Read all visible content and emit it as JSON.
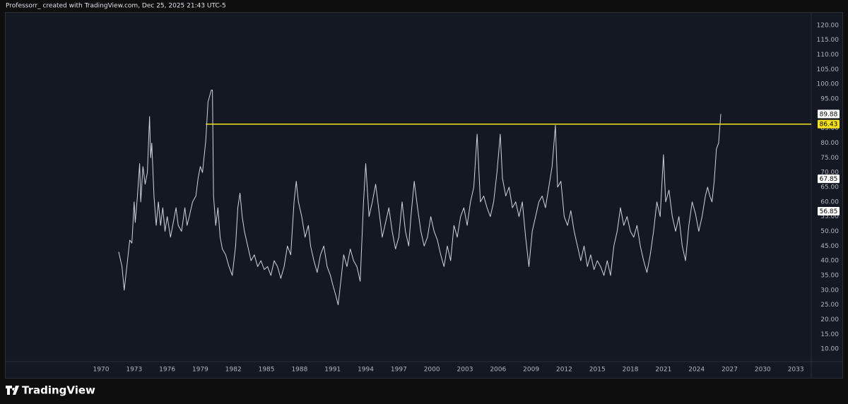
{
  "chart_data": {
    "type": "line",
    "title": "Professorr_ created with TradingView.com, Dec 25, 2025 21:43 UTC-5",
    "brand": "TradingView",
    "color": "#d1d4dc",
    "x": [
      1971.6,
      1971.9,
      1972.1,
      1972.4,
      1972.6,
      1972.8,
      1973.0,
      1973.1,
      1973.3,
      1973.5,
      1973.6,
      1973.8,
      1974.0,
      1974.2,
      1974.4,
      1974.5,
      1974.6,
      1974.8,
      1975.0,
      1975.2,
      1975.4,
      1975.6,
      1975.8,
      1976.0,
      1976.3,
      1976.5,
      1976.8,
      1977.0,
      1977.3,
      1977.6,
      1977.8,
      1978.0,
      1978.3,
      1978.6,
      1978.8,
      1979.0,
      1979.2,
      1979.5,
      1979.7,
      1980.0,
      1980.1,
      1980.2,
      1980.4,
      1980.6,
      1980.8,
      1981.0,
      1981.3,
      1981.6,
      1981.9,
      1982.2,
      1982.4,
      1982.6,
      1982.8,
      1983.0,
      1983.3,
      1983.6,
      1983.9,
      1984.2,
      1984.5,
      1984.8,
      1985.1,
      1985.4,
      1985.7,
      1986.0,
      1986.3,
      1986.6,
      1986.9,
      1987.2,
      1987.5,
      1987.7,
      1987.9,
      1988.2,
      1988.5,
      1988.8,
      1989.0,
      1989.3,
      1989.6,
      1989.9,
      1990.2,
      1990.5,
      1990.8,
      1991.0,
      1991.3,
      1991.5,
      1991.8,
      1992.0,
      1992.3,
      1992.6,
      1992.9,
      1993.2,
      1993.5,
      1993.8,
      1994.0,
      1994.3,
      1994.6,
      1994.9,
      1995.2,
      1995.5,
      1995.8,
      1996.1,
      1996.4,
      1996.7,
      1997.0,
      1997.3,
      1997.6,
      1997.9,
      1998.1,
      1998.4,
      1998.7,
      1999.0,
      1999.3,
      1999.6,
      1999.9,
      2000.2,
      2000.5,
      2000.8,
      2001.1,
      2001.4,
      2001.7,
      2002.0,
      2002.3,
      2002.6,
      2002.9,
      2003.2,
      2003.5,
      2003.8,
      2004.1,
      2004.4,
      2004.7,
      2005.0,
      2005.3,
      2005.6,
      2005.9,
      2006.2,
      2006.4,
      2006.7,
      2007.0,
      2007.3,
      2007.6,
      2007.9,
      2008.2,
      2008.5,
      2008.8,
      2009.1,
      2009.4,
      2009.7,
      2010.0,
      2010.3,
      2010.6,
      2010.9,
      2011.2,
      2011.4,
      2011.7,
      2012.0,
      2012.3,
      2012.6,
      2012.9,
      2013.2,
      2013.5,
      2013.8,
      2014.1,
      2014.4,
      2014.7,
      2015.0,
      2015.3,
      2015.6,
      2015.9,
      2016.2,
      2016.5,
      2016.8,
      2017.1,
      2017.4,
      2017.7,
      2018.0,
      2018.3,
      2018.6,
      2018.9,
      2019.2,
      2019.5,
      2019.8,
      2020.1,
      2020.4,
      2020.7,
      2021.0,
      2021.2,
      2021.5,
      2021.8,
      2022.1,
      2022.4,
      2022.7,
      2023.0,
      2023.3,
      2023.6,
      2023.9,
      2024.2,
      2024.5,
      2024.8,
      2025.0,
      2025.2,
      2025.4,
      2025.6,
      2025.8,
      2026.0,
      2026.2
    ],
    "values": [
      43,
      38,
      30,
      40,
      47,
      46,
      60,
      53,
      62,
      73,
      60,
      72,
      66,
      70,
      89,
      75,
      80,
      62,
      52,
      60,
      52,
      58,
      50,
      55,
      48,
      52,
      58,
      52,
      50,
      58,
      52,
      55,
      60,
      62,
      68,
      72,
      70,
      81,
      94,
      98,
      98,
      62,
      52,
      58,
      48,
      44,
      42,
      38,
      35,
      45,
      58,
      63,
      55,
      50,
      45,
      40,
      42,
      38,
      40,
      37,
      38,
      35,
      40,
      38,
      34,
      38,
      45,
      42,
      60,
      67,
      60,
      55,
      48,
      52,
      45,
      40,
      36,
      42,
      45,
      38,
      35,
      32,
      28,
      25,
      35,
      42,
      38,
      44,
      40,
      38,
      33,
      60,
      73,
      55,
      60,
      66,
      57,
      48,
      53,
      58,
      50,
      44,
      48,
      60,
      50,
      45,
      55,
      67,
      58,
      50,
      45,
      48,
      55,
      50,
      47,
      42,
      38,
      45,
      40,
      52,
      48,
      55,
      58,
      52,
      60,
      65,
      83,
      60,
      62,
      58,
      55,
      60,
      70,
      83,
      68,
      62,
      65,
      58,
      60,
      55,
      60,
      48,
      38,
      50,
      55,
      60,
      62,
      58,
      65,
      72,
      86,
      65,
      67,
      55,
      52,
      57,
      50,
      45,
      40,
      45,
      38,
      42,
      37,
      40,
      38,
      35,
      40,
      35,
      45,
      50,
      58,
      52,
      55,
      50,
      48,
      52,
      45,
      40,
      36,
      42,
      50,
      60,
      55,
      76,
      60,
      64,
      55,
      50,
      55,
      45,
      40,
      52,
      60,
      56,
      50,
      55,
      62,
      65,
      62,
      60,
      67,
      78,
      80,
      89.88
    ],
    "xlim": [
      1961.35,
      2034.4
    ],
    "ylim": [
      5.7,
      124.3
    ],
    "xticks": [
      1970,
      1973,
      1976,
      1979,
      1982,
      1985,
      1988,
      1991,
      1994,
      1997,
      2000,
      2003,
      2006,
      2009,
      2012,
      2015,
      2018,
      2021,
      2024,
      2027,
      2030,
      2033
    ],
    "yticks": [
      {
        "value": 10,
        "label": "10.00"
      },
      {
        "value": 15,
        "label": "15.00"
      },
      {
        "value": 20,
        "label": "20.00"
      },
      {
        "value": 25,
        "label": "25.00"
      },
      {
        "value": 30,
        "label": "30.00"
      },
      {
        "value": 35,
        "label": "35.00"
      },
      {
        "value": 40,
        "label": "40.00"
      },
      {
        "value": 45,
        "label": "45.00"
      },
      {
        "value": 50,
        "label": "50.00"
      },
      {
        "value": 55,
        "label": "55.00"
      },
      {
        "value": 60,
        "label": "60.00"
      },
      {
        "value": 65,
        "label": "65.00"
      },
      {
        "value": 70,
        "label": "70.00"
      },
      {
        "value": 75,
        "label": "75.00"
      },
      {
        "value": 80,
        "label": "80.00"
      },
      {
        "value": 85,
        "label": "85.00"
      },
      {
        "value": 90,
        "label": "90.00"
      },
      {
        "value": 95,
        "label": "95.00"
      },
      {
        "value": 100,
        "label": "100.00"
      },
      {
        "value": 105,
        "label": "105.00"
      },
      {
        "value": 110,
        "label": "110.00"
      },
      {
        "value": 115,
        "label": "115.00"
      },
      {
        "value": 120,
        "label": "120.00"
      }
    ],
    "price_labels": [
      89.88,
      67.85,
      56.85
    ],
    "price_label_color": "#ffffff",
    "hline": {
      "value": 86.43,
      "x_start": 1979.5,
      "color": "#f5e11e"
    }
  }
}
